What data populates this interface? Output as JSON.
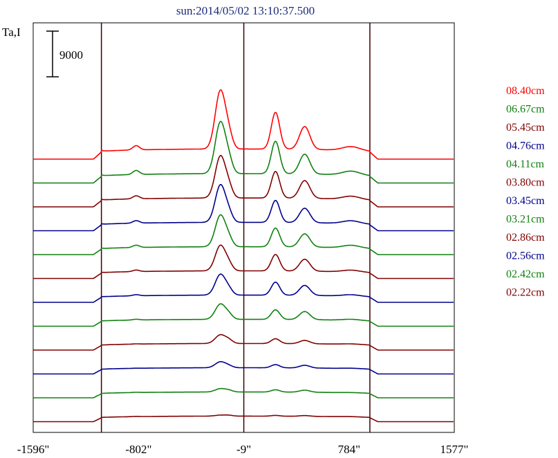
{
  "chart_data": {
    "type": "line",
    "title": "sun:2014/05/02 13:10:37.500",
    "ylabel": "Ta,I",
    "scale_bar_label": "9000",
    "scale_bar_value": 9000,
    "x_unit": "arcsec",
    "xlim": [
      -1596,
      1577
    ],
    "x_ticks": [
      -1596,
      -802,
      -9,
      784,
      1577
    ],
    "x_tick_labels": [
      "-1596\"",
      "-802\"",
      "-9\"",
      "784\"",
      "1577\""
    ],
    "vlines": [
      -1082,
      -9,
      941
    ],
    "series": [
      {
        "name": "08.40cm",
        "color": "#ff0000",
        "baseline": 4000,
        "peaks": [
          27000,
          18500,
          13000,
          8500,
          5700,
          5500,
          5500,
          4300
        ]
      },
      {
        "name": "06.67cm",
        "color": "#108010",
        "baseline": 3700,
        "peaks": [
          24000,
          16500,
          11500,
          8000,
          5300,
          5000,
          5200,
          4300
        ]
      },
      {
        "name": "05.45cm",
        "color": "#800000",
        "baseline": 3500,
        "peaks": [
          20000,
          14000,
          10500,
          7000,
          4700,
          4500,
          4700,
          4100
        ]
      },
      {
        "name": "04.76cm",
        "color": "#00008b",
        "baseline": 3300,
        "peaks": [
          18000,
          12000,
          9000,
          6200,
          4300,
          4100,
          4400,
          3900
        ]
      },
      {
        "name": "04.11cm",
        "color": "#108010",
        "baseline": 3100,
        "peaks": [
          15500,
          10500,
          8300,
          5700,
          4000,
          3800,
          4100,
          3700
        ]
      },
      {
        "name": "03.80cm",
        "color": "#800000",
        "baseline": 3000,
        "peaks": [
          13000,
          9500,
          7700,
          5200,
          3600,
          3500,
          3700,
          3400
        ]
      },
      {
        "name": "03.45cm",
        "color": "#00008b",
        "baseline": 2850,
        "peaks": [
          11000,
          8000,
          6800,
          4700,
          3300,
          3200,
          3400,
          3200
        ]
      },
      {
        "name": "03.21cm",
        "color": "#108010",
        "baseline": 2700,
        "peaks": [
          8700,
          6500,
          5900,
          4300,
          3000,
          2900,
          3100,
          3000
        ]
      },
      {
        "name": "02.86cm",
        "color": "#800000",
        "baseline": 2600,
        "peaks": [
          6000,
          4500,
          3900,
          3800,
          2700,
          2600,
          2800,
          2800
        ]
      },
      {
        "name": "02.56cm",
        "color": "#00008b",
        "baseline": 2450,
        "peaks": [
          4800,
          3700,
          3500,
          3100,
          2500,
          2400,
          2600,
          2600
        ]
      },
      {
        "name": "02.42cm",
        "color": "#108010",
        "baseline": 2300,
        "peaks": [
          3600,
          3200,
          3100,
          2900,
          2400,
          2300,
          2400,
          2400
        ]
      },
      {
        "name": "02.22cm",
        "color": "#800000",
        "baseline": 2200,
        "peaks": [
          2600,
          2500,
          2500,
          2500,
          2300,
          2250,
          2300,
          2300
        ]
      }
    ],
    "peak_x": [
      -185,
      230,
      450,
      -120,
      -820,
      -1130,
      800,
      1050
    ],
    "grid": false
  }
}
